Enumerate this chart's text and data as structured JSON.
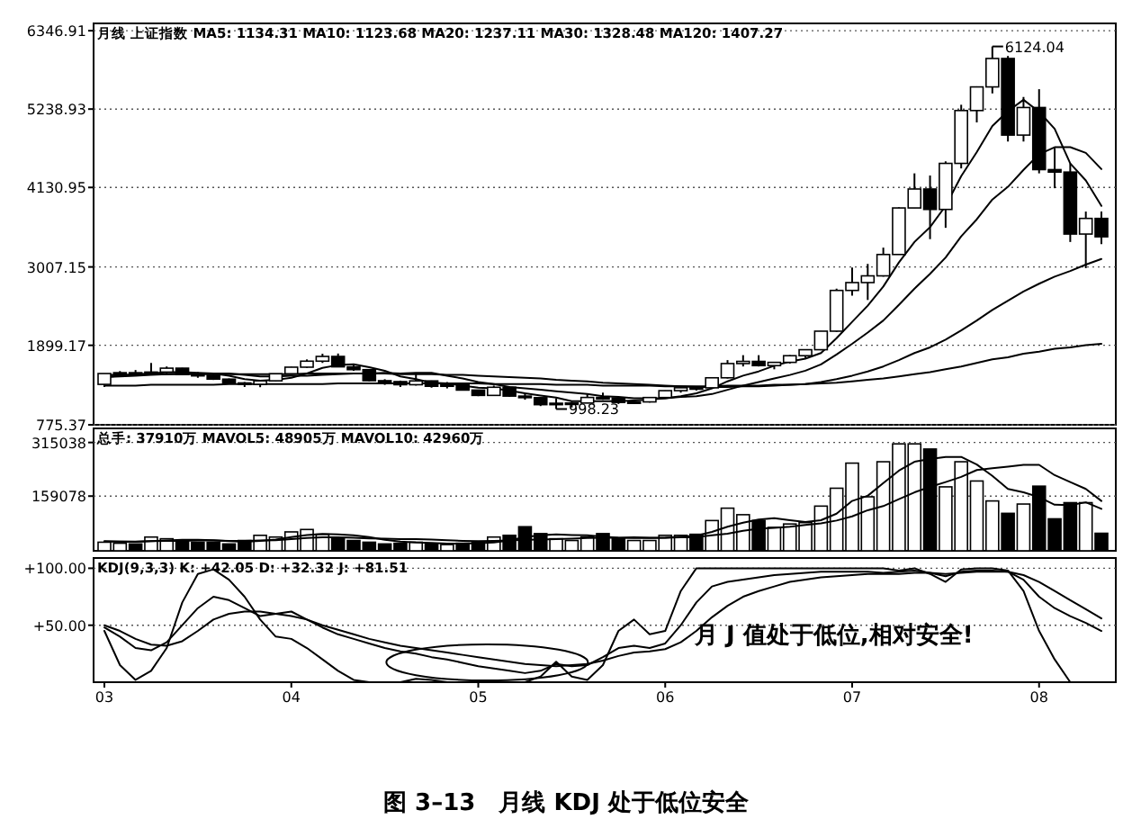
{
  "chart_data": [
    {
      "type": "candlestick",
      "title": "月线  上证指数 MA5: 1134.31 MA10: 1123.68 MA20: 1237.11 MA30: 1328.48 MA120: 1407.27",
      "tick_labels": "y",
      "grid": "y",
      "ylim": [
        775.37,
        6450
      ],
      "yticks": [
        775.37,
        1899.17,
        3007.15,
        4130.95,
        5238.93,
        6346.91
      ],
      "categories": [
        null,
        null,
        null,
        null,
        null,
        null,
        null,
        null,
        null,
        null,
        null,
        null,
        null,
        null,
        null,
        null,
        null,
        null,
        null,
        null,
        null,
        null,
        null,
        null,
        null,
        null,
        null,
        null,
        null,
        null,
        null,
        null,
        null,
        null,
        null,
        null,
        null,
        null,
        null,
        null,
        null,
        null,
        null,
        null,
        null,
        null,
        null,
        null,
        null,
        null,
        null,
        null,
        null,
        null,
        null,
        null,
        null,
        null,
        null,
        null,
        null,
        null,
        null,
        null,
        null
      ],
      "ohlc": [
        [
          1347,
          1500,
          1311,
          1500
        ],
        [
          1500,
          1535,
          1470,
          1512
        ],
        [
          1512,
          1550,
          1480,
          1510
        ],
        [
          1510,
          1650,
          1480,
          1521
        ],
        [
          1521,
          1600,
          1500,
          1576
        ],
        [
          1576,
          1580,
          1480,
          1487
        ],
        [
          1487,
          1520,
          1440,
          1476
        ],
        [
          1476,
          1500,
          1410,
          1421
        ],
        [
          1421,
          1430,
          1360,
          1367
        ],
        [
          1367,
          1380,
          1310,
          1348
        ],
        [
          1348,
          1400,
          1307,
          1397
        ],
        [
          1397,
          1500,
          1390,
          1497
        ],
        [
          1497,
          1595,
          1490,
          1590
        ],
        [
          1590,
          1700,
          1580,
          1675
        ],
        [
          1675,
          1780,
          1650,
          1742
        ],
        [
          1742,
          1783,
          1590,
          1595
        ],
        [
          1595,
          1640,
          1540,
          1555
        ],
        [
          1555,
          1560,
          1390,
          1399
        ],
        [
          1399,
          1420,
          1340,
          1386
        ],
        [
          1386,
          1400,
          1310,
          1342
        ],
        [
          1342,
          1500,
          1330,
          1396
        ],
        [
          1396,
          1400,
          1300,
          1320
        ],
        [
          1320,
          1380,
          1290,
          1340
        ],
        [
          1340,
          1350,
          1260,
          1266
        ],
        [
          1266,
          1270,
          1180,
          1191
        ],
        [
          1191,
          1330,
          1190,
          1306
        ],
        [
          1306,
          1320,
          1170,
          1181
        ],
        [
          1181,
          1230,
          1130,
          1159
        ],
        [
          1159,
          1160,
          1040,
          1060
        ],
        [
          1060,
          1150,
          998.23,
          1080
        ],
        [
          1080,
          1100,
          1020,
          1083
        ],
        [
          1083,
          1210,
          1080,
          1162
        ],
        [
          1162,
          1230,
          1130,
          1155
        ],
        [
          1155,
          1160,
          1070,
          1092
        ],
        [
          1092,
          1110,
          1070,
          1099
        ],
        [
          1099,
          1170,
          1090,
          1161
        ],
        [
          1161,
          1260,
          1160,
          1258
        ],
        [
          1258,
          1310,
          1230,
          1299
        ],
        [
          1299,
          1310,
          1260,
          1298
        ],
        [
          1298,
          1445,
          1295,
          1440
        ],
        [
          1440,
          1690,
          1430,
          1641
        ],
        [
          1641,
          1760,
          1600,
          1672
        ],
        [
          1672,
          1760,
          1600,
          1612
        ],
        [
          1612,
          1660,
          1560,
          1658
        ],
        [
          1658,
          1760,
          1640,
          1752
        ],
        [
          1752,
          1840,
          1720,
          1837
        ],
        [
          1837,
          2100,
          1830,
          2099
        ],
        [
          2099,
          2700,
          2090,
          2675
        ],
        [
          2675,
          3000,
          2600,
          2786
        ],
        [
          2786,
          3050,
          2540,
          2881
        ],
        [
          2881,
          3280,
          2870,
          3183
        ],
        [
          3183,
          3850,
          3180,
          3841
        ],
        [
          3841,
          4330,
          3840,
          4109
        ],
        [
          4109,
          4300,
          3400,
          3820
        ],
        [
          3820,
          4500,
          3560,
          4471
        ],
        [
          4471,
          5300,
          4400,
          5218
        ],
        [
          5218,
          5560,
          5050,
          5552
        ],
        [
          5552,
          6124.04,
          5460,
          5954
        ],
        [
          5954,
          5990,
          4780,
          4871
        ],
        [
          4871,
          5410,
          4780,
          5261
        ],
        [
          5261,
          5520,
          4330,
          4383
        ],
        [
          4383,
          4690,
          4120,
          4348
        ],
        [
          4348,
          4470,
          3360,
          3472
        ],
        [
          3472,
          3790,
          2990,
          3693
        ],
        [
          3693,
          3790,
          3330,
          3433
        ]
      ],
      "series": [
        {
          "type": "line",
          "color": "#000000",
          "values": [
            1450,
            1470,
            1490,
            1500,
            1520,
            1520,
            1510,
            1500,
            1470,
            1420,
            1400,
            1410,
            1440,
            1500,
            1580,
            1620,
            1630,
            1590,
            1540,
            1460,
            1420,
            1370,
            1360,
            1330,
            1300,
            1290,
            1260,
            1220,
            1190,
            1160,
            1110,
            1110,
            1110,
            1110,
            1120,
            1130,
            1150,
            1180,
            1220,
            1290,
            1390,
            1470,
            1530,
            1610,
            1670,
            1710,
            1790,
            2000,
            2230,
            2460,
            2730,
            3070,
            3360,
            3570,
            3870,
            4290,
            4630,
            5000,
            5210,
            5370,
            5200,
            4960,
            4470,
            4230,
            3870
          ]
        },
        {
          "type": "line",
          "color": "#000000",
          "values": [
            1450,
            1460,
            1470,
            1480,
            1490,
            1500,
            1500,
            1500,
            1500,
            1480,
            1460,
            1460,
            1470,
            1470,
            1480,
            1490,
            1500,
            1500,
            1510,
            1500,
            1510,
            1510,
            1470,
            1430,
            1380,
            1350,
            1310,
            1290,
            1270,
            1250,
            1230,
            1210,
            1180,
            1170,
            1150,
            1150,
            1150,
            1170,
            1180,
            1210,
            1270,
            1330,
            1380,
            1430,
            1480,
            1540,
            1630,
            1770,
            1920,
            2080,
            2250,
            2470,
            2700,
            2910,
            3140,
            3440,
            3680,
            3960,
            4140,
            4380,
            4600,
            4700,
            4700,
            4620,
            4390
          ]
        },
        {
          "type": "line",
          "color": "#000000",
          "values": [
            1480,
            1480,
            1480,
            1490,
            1490,
            1490,
            1490,
            1490,
            1490,
            1490,
            1490,
            1490,
            1490,
            1500,
            1500,
            1500,
            1500,
            1500,
            1500,
            1490,
            1490,
            1490,
            1480,
            1480,
            1470,
            1460,
            1450,
            1440,
            1430,
            1410,
            1400,
            1390,
            1370,
            1360,
            1350,
            1340,
            1330,
            1320,
            1310,
            1310,
            1310,
            1320,
            1320,
            1330,
            1340,
            1350,
            1380,
            1420,
            1470,
            1530,
            1600,
            1690,
            1790,
            1870,
            1980,
            2110,
            2250,
            2400,
            2530,
            2660,
            2770,
            2870,
            2950,
            3040,
            3120
          ]
        },
        {
          "type": "line",
          "color": "#000000",
          "values": [
            1330,
            1330,
            1330,
            1340,
            1340,
            1340,
            1340,
            1340,
            1350,
            1350,
            1350,
            1350,
            1350,
            1350,
            1350,
            1360,
            1360,
            1360,
            1360,
            1360,
            1360,
            1360,
            1360,
            1360,
            1360,
            1350,
            1350,
            1350,
            1350,
            1340,
            1340,
            1340,
            1330,
            1330,
            1330,
            1330,
            1320,
            1320,
            1320,
            1320,
            1330,
            1330,
            1330,
            1340,
            1340,
            1350,
            1360,
            1370,
            1390,
            1410,
            1430,
            1460,
            1490,
            1520,
            1560,
            1600,
            1650,
            1700,
            1730,
            1780,
            1810,
            1850,
            1870,
            1900,
            1920
          ]
        }
      ],
      "annotations": [
        "6124.04",
        "998.23"
      ]
    },
    {
      "type": "bar",
      "title": "总手: 37910万 MAVOL5: 48905万 MAVOL10: 42960万",
      "tick_labels": "y",
      "grid": "y",
      "ylim": [
        0,
        356000
      ],
      "yticks": [
        159078,
        315038
      ],
      "categories": [
        null,
        null,
        null,
        null,
        null,
        null,
        null,
        null,
        null,
        null,
        null,
        null,
        null,
        null,
        null,
        null,
        null,
        null,
        null,
        null,
        null,
        null,
        null,
        null,
        null,
        null,
        null,
        null,
        null,
        null,
        null,
        null,
        null,
        null,
        null,
        null,
        null,
        null,
        null,
        null,
        null,
        null,
        null,
        null,
        null,
        null,
        null,
        null,
        null,
        null,
        null,
        null,
        null,
        null,
        null,
        null,
        null,
        null,
        null,
        null,
        null,
        null,
        null,
        null,
        null
      ],
      "series": [
        {
          "type": "bar",
          "colors": [
            "#ffffff",
            "#ffffff",
            "#000000",
            "#ffffff",
            "#ffffff",
            "#000000",
            "#000000",
            "#000000",
            "#000000",
            "#000000",
            "#ffffff",
            "#ffffff",
            "#ffffff",
            "#ffffff",
            "#ffffff",
            "#000000",
            "#000000",
            "#000000",
            "#000000",
            "#000000",
            "#ffffff",
            "#000000",
            "#ffffff",
            "#000000",
            "#000000",
            "#ffffff",
            "#000000",
            "#000000",
            "#000000",
            "#ffffff",
            "#ffffff",
            "#ffffff",
            "#000000",
            "#000000",
            "#ffffff",
            "#ffffff",
            "#ffffff",
            "#ffffff",
            "#000000",
            "#ffffff",
            "#ffffff",
            "#ffffff",
            "#000000",
            "#ffffff",
            "#ffffff",
            "#ffffff",
            "#ffffff",
            "#ffffff",
            "#ffffff",
            "#ffffff",
            "#ffffff",
            "#ffffff",
            "#ffffff",
            "#000000",
            "#ffffff",
            "#ffffff",
            "#ffffff",
            "#ffffff",
            "#000000",
            "#ffffff",
            "#000000",
            "#000000",
            "#000000",
            "#ffffff",
            "#000000"
          ],
          "values": [
            25000,
            22000,
            20000,
            40000,
            35000,
            30000,
            25000,
            25000,
            20000,
            30000,
            45000,
            40000,
            55000,
            62000,
            48000,
            35000,
            30000,
            25000,
            20000,
            22000,
            25000,
            20000,
            18000,
            22000,
            25000,
            40000,
            45000,
            70000,
            50000,
            35000,
            30000,
            40000,
            50000,
            35000,
            30000,
            30000,
            45000,
            45000,
            48000,
            88000,
            124000,
            105000,
            88000,
            68000,
            78000,
            82000,
            130000,
            182000,
            255000,
            157000,
            259000,
            311000,
            311000,
            296000,
            186000,
            259000,
            203000,
            145000,
            109000,
            136000,
            188000,
            93000,
            140000,
            140000,
            51000
          ]
        },
        {
          "type": "line",
          "color": "#000000",
          "values": [
            28000,
            27000,
            26000,
            28000,
            30000,
            32000,
            32000,
            31000,
            28000,
            26000,
            29000,
            33000,
            40000,
            46000,
            49000,
            48000,
            45000,
            40000,
            32000,
            27000,
            24000,
            23000,
            21000,
            21000,
            22000,
            24000,
            30000,
            40000,
            45000,
            48000,
            46000,
            45000,
            41000,
            38000,
            37000,
            37000,
            38000,
            41000,
            44000,
            55000,
            70000,
            82000,
            91000,
            95000,
            89000,
            84000,
            89000,
            108000,
            145000,
            160000,
            197000,
            233000,
            259000,
            267000,
            273000,
            273000,
            251000,
            218000,
            180000,
            170000,
            156000,
            134000,
            133000,
            141000,
            122000
          ]
        },
        {
          "type": "line",
          "color": "#000000",
          "values": [
            27000,
            27000,
            27000,
            28000,
            29000,
            29000,
            30000,
            30000,
            29000,
            29000,
            30000,
            31000,
            34000,
            37000,
            39000,
            39000,
            38000,
            36000,
            35000,
            34000,
            34000,
            33000,
            31000,
            29000,
            28000,
            29000,
            30000,
            32000,
            33000,
            34000,
            35000,
            37000,
            38000,
            38000,
            39000,
            38000,
            38000,
            39000,
            40000,
            45000,
            50000,
            58000,
            64000,
            67000,
            70000,
            75000,
            80000,
            88000,
            100000,
            118000,
            130000,
            150000,
            170000,
            186000,
            200000,
            215000,
            235000,
            240000,
            245000,
            250000,
            250000,
            220000,
            200000,
            180000,
            145000
          ]
        }
      ]
    },
    {
      "type": "line",
      "title": "KDJ(9,3,3) K: +42.05 D: +32.32 J: +81.51",
      "grid": "y",
      "ylim": [
        0,
        109
      ],
      "yticks": [
        {
          "value": 50,
          "label": "+50.00"
        },
        {
          "value": 100,
          "label": "+100.00"
        }
      ],
      "categories": [
        "03",
        null,
        null,
        null,
        null,
        null,
        null,
        null,
        null,
        null,
        null,
        null,
        "04",
        null,
        null,
        null,
        null,
        null,
        null,
        null,
        null,
        null,
        null,
        null,
        "05",
        null,
        null,
        null,
        null,
        null,
        null,
        null,
        null,
        null,
        null,
        null,
        "06",
        null,
        null,
        null,
        null,
        null,
        null,
        null,
        null,
        null,
        null,
        null,
        "07",
        null,
        null,
        null,
        null,
        null,
        null,
        null,
        null,
        null,
        null,
        null,
        "08",
        null,
        null,
        null,
        null
      ],
      "series": [
        {
          "color": "#000000",
          "values": [
            48,
            40,
            30,
            28,
            35,
            50,
            65,
            75,
            72,
            65,
            58,
            60,
            62,
            55,
            48,
            42,
            38,
            34,
            30,
            27,
            25,
            22,
            20,
            17,
            14,
            12,
            10,
            8,
            10,
            16,
            14,
            15,
            22,
            30,
            32,
            30,
            34,
            50,
            70,
            84,
            88,
            90,
            92,
            94,
            95,
            96,
            97,
            97,
            97,
            97,
            96,
            97,
            98,
            96,
            93,
            97,
            98,
            98,
            97,
            90,
            75,
            65,
            58,
            52,
            45
          ]
        },
        {
          "color": "#000000",
          "values": [
            50,
            45,
            38,
            33,
            32,
            36,
            45,
            55,
            60,
            62,
            62,
            60,
            58,
            55,
            50,
            46,
            42,
            38,
            35,
            32,
            30,
            28,
            26,
            24,
            22,
            20,
            18,
            16,
            15,
            14,
            15,
            16,
            19,
            23,
            26,
            27,
            29,
            35,
            45,
            57,
            67,
            75,
            80,
            84,
            88,
            90,
            92,
            93,
            94,
            95,
            95,
            95,
            96,
            96,
            95,
            96,
            97,
            97,
            97,
            94,
            88,
            80,
            72,
            64,
            56
          ]
        },
        {
          "color": "#000000",
          "values": [
            45,
            15,
            2,
            10,
            30,
            70,
            95,
            99,
            90,
            75,
            55,
            40,
            38,
            30,
            20,
            10,
            2,
            0,
            0,
            0,
            3,
            2,
            0,
            0,
            0,
            0,
            0,
            0,
            5,
            18,
            5,
            2,
            15,
            45,
            55,
            42,
            45,
            80,
            100,
            100,
            100,
            100,
            100,
            100,
            100,
            100,
            100,
            100,
            100,
            100,
            100,
            98,
            100,
            95,
            88,
            99,
            100,
            100,
            98,
            80,
            45,
            20,
            0,
            0,
            0
          ]
        }
      ],
      "annotations": [
        "月 J 值处于低位,相对安全!",
        "图 3–13　月线 KDJ 处于低位安全"
      ]
    }
  ]
}
